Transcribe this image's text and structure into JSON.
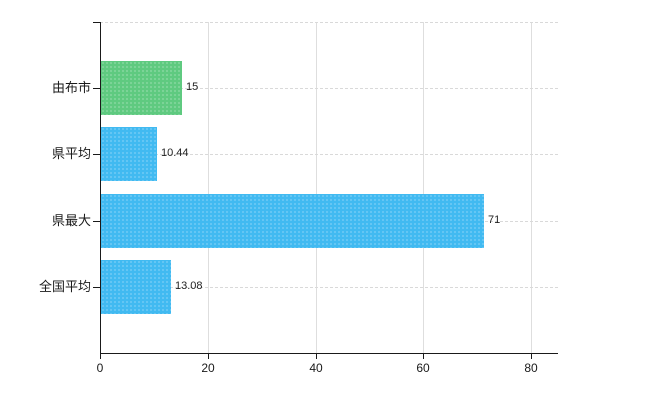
{
  "chart_data": {
    "type": "bar",
    "orientation": "horizontal",
    "title": "",
    "xlabel": "",
    "ylabel": "",
    "categories": [
      "由布市",
      "県平均",
      "県最大",
      "全国平均"
    ],
    "values": [
      15,
      10.44,
      71,
      13.08
    ],
    "value_labels": [
      "15",
      "10.44",
      "71",
      "13.08"
    ],
    "x_ticks": [
      0,
      20,
      40,
      60,
      80
    ],
    "x_tick_labels": [
      "0",
      "20",
      "40",
      "60",
      "80"
    ],
    "xlim": [
      0,
      85
    ],
    "grid": true,
    "legend": false,
    "colors": {
      "bar_colors": [
        "#5fca80",
        "#41baf1",
        "#41baf1",
        "#41baf1"
      ],
      "axis": "#1a1a1a",
      "gridline": "#dcdcdc",
      "text": "#1a1a1a",
      "background": "#ffffff"
    }
  }
}
